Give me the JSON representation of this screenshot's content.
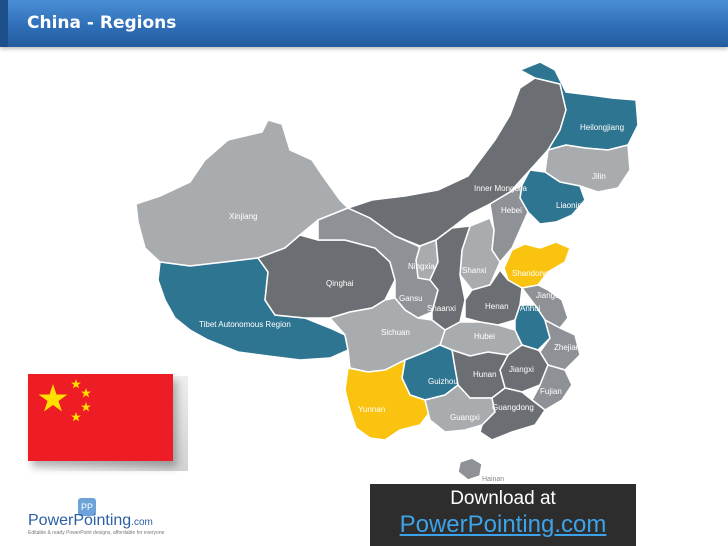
{
  "header": {
    "title": "China - Regions"
  },
  "colors": {
    "dark": "#6b6e72",
    "mid": "#8e9195",
    "light": "#a9acaf",
    "teal": "#2e7591",
    "yellow": "#f9c30f",
    "header_blue": "#3a7cc7"
  },
  "regions": [
    {
      "label": "Heilongjiang",
      "color": "teal"
    },
    {
      "label": "Jilin",
      "color": "light"
    },
    {
      "label": "Liaoning",
      "color": "teal"
    },
    {
      "label": "Inner Mongolia",
      "color": "dark"
    },
    {
      "label": "Hebei",
      "color": "mid"
    },
    {
      "label": "Xinjiang",
      "color": "light"
    },
    {
      "label": "Ningxia",
      "color": "light"
    },
    {
      "label": "Shanxi",
      "color": "light"
    },
    {
      "label": "Shandong",
      "color": "yellow"
    },
    {
      "label": "Qinghai",
      "color": "dark"
    },
    {
      "label": "Gansu",
      "color": "mid"
    },
    {
      "label": "Shaanxi",
      "color": "dark"
    },
    {
      "label": "Henan",
      "color": "dark"
    },
    {
      "label": "Jiangsu",
      "color": "mid"
    },
    {
      "label": "Anhui",
      "color": "teal"
    },
    {
      "label": "Tibet Autonomous Region",
      "color": "teal"
    },
    {
      "label": "Sichuan",
      "color": "light"
    },
    {
      "label": "Hubei",
      "color": "light"
    },
    {
      "label": "Zhejiang",
      "color": "mid"
    },
    {
      "label": "Jiangxi",
      "color": "dark"
    },
    {
      "label": "Hunan",
      "color": "dark"
    },
    {
      "label": "Guizhou",
      "color": "teal"
    },
    {
      "label": "Fujian",
      "color": "mid"
    },
    {
      "label": "Yunnan",
      "color": "yellow"
    },
    {
      "label": "Guangxi",
      "color": "light"
    },
    {
      "label": "Guangdong",
      "color": "dark"
    },
    {
      "label": "Hainan",
      "color": "mid"
    }
  ],
  "logo": {
    "word_main": "PowerPointing",
    "word_suffix": ".com",
    "tagline": "Editable & ready PowerPoint designs, affordable for everyone",
    "badge": "PP"
  },
  "download": {
    "line1": "Download at",
    "line2": "PowerPointing.com"
  }
}
